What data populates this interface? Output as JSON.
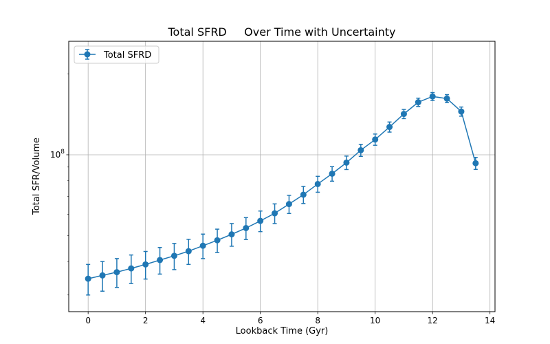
{
  "chart_data": {
    "type": "line",
    "title": "Total SFRD     Over Time with Uncertainty",
    "xlabel": "Lookback Time (Gyr)",
    "ylabel": "Total SFR/Volume",
    "x_scale": "linear",
    "y_scale": "log",
    "xlim": [
      -0.675,
      14.175
    ],
    "ylim": [
      26000000.0,
      265000000.0
    ],
    "x_ticks": [
      0,
      2,
      4,
      6,
      8,
      10,
      12,
      14
    ],
    "x_tick_labels": [
      "0",
      "2",
      "4",
      "6",
      "8",
      "10",
      "12",
      "14"
    ],
    "y_major_ticks": [
      100000000.0
    ],
    "y_major_tick_labels": [
      "10^8"
    ],
    "y_minor_ticks": [
      30000000.0,
      40000000.0,
      50000000.0,
      60000000.0,
      70000000.0,
      80000000.0,
      90000000.0,
      200000000.0
    ],
    "grid": true,
    "legend_position": "top-left",
    "series": [
      {
        "name": "Total SFRD",
        "color": "#1f77b4",
        "marker": "circle",
        "x": [
          0,
          0.5,
          1,
          1.5,
          2,
          2.5,
          3,
          3.5,
          4,
          4.5,
          5,
          5.5,
          6,
          6.5,
          7,
          7.5,
          8,
          8.5,
          9,
          9.5,
          10,
          10.5,
          11,
          11.5,
          12,
          12.5,
          13,
          13.5
        ],
        "y": [
          34500000.0,
          35500000.0,
          36500000.0,
          37700000.0,
          39000000.0,
          40500000.0,
          42000000.0,
          43700000.0,
          45800000.0,
          48000000.0,
          50500000.0,
          53300000.0,
          56700000.0,
          60500000.0,
          65500000.0,
          71000000.0,
          77800000.0,
          85000000.0,
          93500000.0,
          104000000.0,
          114000000.0,
          127000000.0,
          142000000.0,
          157000000.0,
          165000000.0,
          162000000.0,
          145000000.0,
          93000000.0
        ],
        "y_err": [
          4500000.0,
          4500000.0,
          4500000.0,
          4600000.0,
          4600000.0,
          4600000.0,
          4700000.0,
          4700000.0,
          4800000.0,
          4800000.0,
          4900000.0,
          5000000.0,
          5000000.0,
          5100000.0,
          5100000.0,
          5200000.0,
          5300000.0,
          5300000.0,
          5400000.0,
          5400000.0,
          5500000.0,
          5500000.0,
          5600000.0,
          5600000.0,
          5600000.0,
          5600000.0,
          5700000.0,
          4800000.0
        ]
      }
    ]
  }
}
